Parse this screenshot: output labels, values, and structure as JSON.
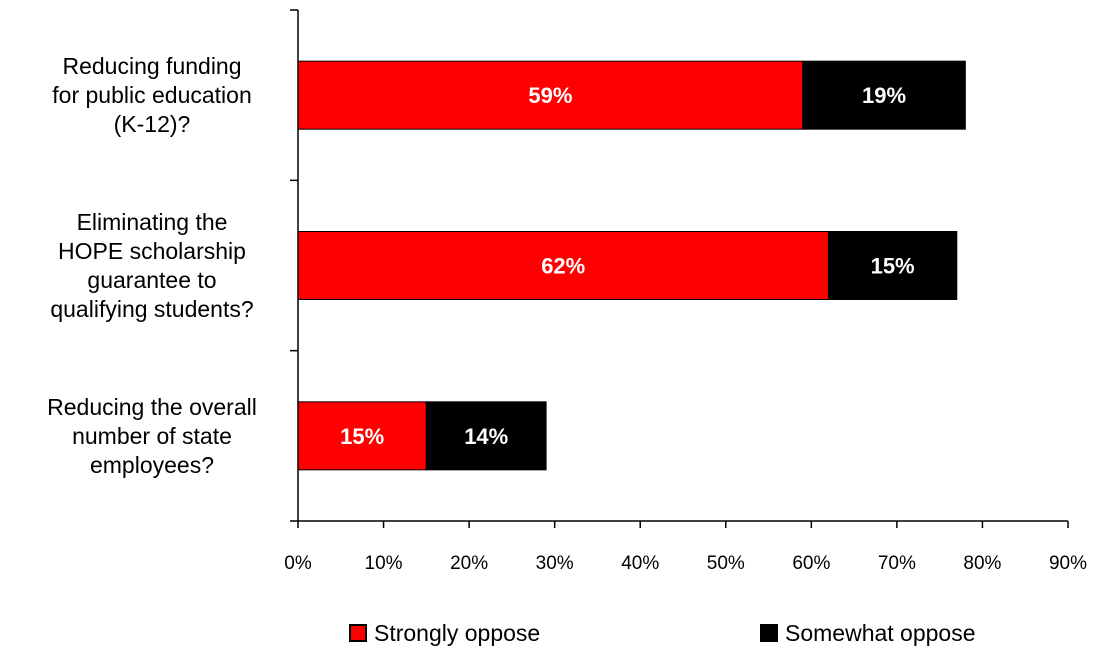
{
  "chart_data": {
    "type": "bar",
    "orientation": "horizontal",
    "stacked": true,
    "categories": [
      "Reducing funding for public education (K-12)?",
      "Eliminating the HOPE scholarship guarantee to qualifying students?",
      "Reducing the overall number of state employees?"
    ],
    "category_lines": [
      [
        "Reducing funding",
        "for public education",
        "(K-12)?"
      ],
      [
        "Eliminating the",
        "HOPE scholarship",
        "guarantee to",
        "qualifying students?"
      ],
      [
        "Reducing the overall",
        "number of state",
        "employees?"
      ]
    ],
    "series": [
      {
        "name": "Strongly oppose",
        "values": [
          59,
          62,
          15
        ],
        "color": "#ff0000",
        "labels": [
          "59%",
          "62%",
          "15%"
        ]
      },
      {
        "name": "Somewhat oppose",
        "values": [
          19,
          15,
          14
        ],
        "color": "#000000",
        "labels": [
          "19%",
          "15%",
          "14%"
        ]
      }
    ],
    "xlim": [
      0,
      90
    ],
    "x_ticks": [
      0,
      10,
      20,
      30,
      40,
      50,
      60,
      70,
      80,
      90
    ],
    "x_tick_labels": [
      "0%",
      "10%",
      "20%",
      "30%",
      "40%",
      "50%",
      "60%",
      "70%",
      "80%",
      "90%"
    ],
    "title": "",
    "xlabel": "",
    "ylabel": "",
    "grid": false,
    "legend_position": "bottom"
  }
}
